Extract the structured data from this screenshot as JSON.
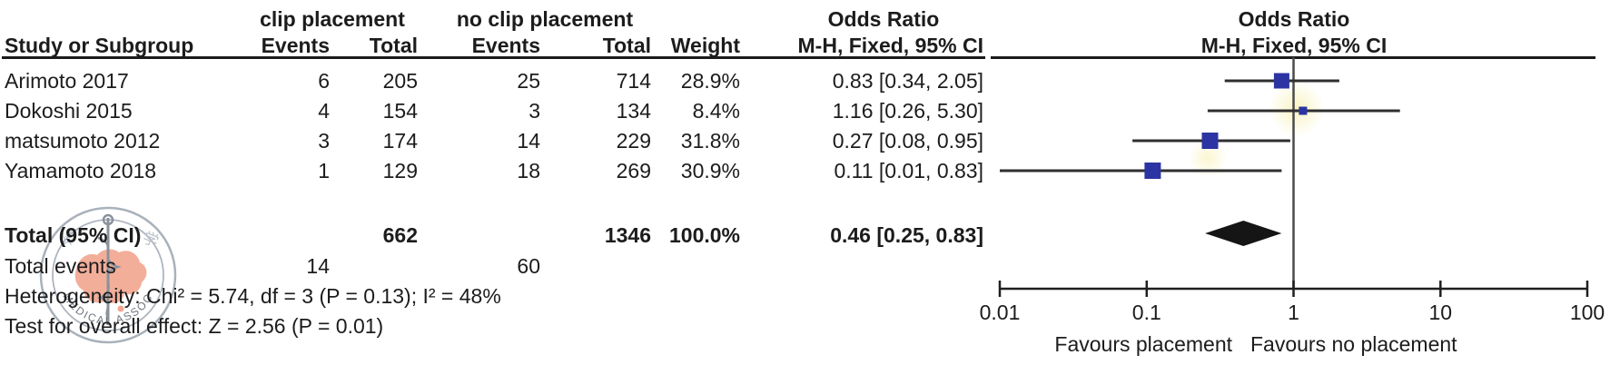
{
  "header": {
    "group1": "clip placement",
    "group2": "no clip placement",
    "or_title_table": "Odds Ratio",
    "or_sub_table": "M-H, Fixed, 95% CI",
    "or_title_plot": "Odds Ratio",
    "or_sub_plot": "M-H, Fixed, 95% CI",
    "study": "Study or Subgroup",
    "events1": "Events",
    "total1": "Total",
    "events2": "Events",
    "total2": "Total",
    "weight": "Weight"
  },
  "rows": [
    {
      "study": "Arimoto 2017",
      "e1": "6",
      "t1": "205",
      "e2": "25",
      "t2": "714",
      "weight": "28.9%",
      "ci": "0.83 [0.34, 2.05]"
    },
    {
      "study": "Dokoshi 2015",
      "e1": "4",
      "t1": "154",
      "e2": "3",
      "t2": "134",
      "weight": "8.4%",
      "ci": "1.16 [0.26, 5.30]"
    },
    {
      "study": "matsumoto 2012",
      "e1": "3",
      "t1": "174",
      "e2": "14",
      "t2": "229",
      "weight": "31.8%",
      "ci": "0.27 [0.08, 0.95]"
    },
    {
      "study": "Yamamoto 2018",
      "e1": "1",
      "t1": "129",
      "e2": "18",
      "t2": "269",
      "weight": "30.9%",
      "ci": "0.11 [0.01, 0.83]"
    }
  ],
  "totals": {
    "label": "Total (95% CI)",
    "t1": "662",
    "t2": "1346",
    "weight": "100.0%",
    "ci": "0.46 [0.25, 0.83]",
    "events_label": "Total events",
    "e1": "14",
    "e2": "60"
  },
  "stats": {
    "heterogeneity": "Heterogeneity: Chi² = 5.74, df = 3 (P = 0.13); I² = 48%",
    "overall": "Test for overall effect: Z = 2.56 (P = 0.01)"
  },
  "chart_data": {
    "type": "forest",
    "x_scale": "log10",
    "xlim": [
      0.01,
      100
    ],
    "axis_ticks": [
      0.01,
      0.1,
      1,
      10,
      100
    ],
    "null_line": 1,
    "studies": [
      {
        "name": "Arimoto 2017",
        "or": 0.83,
        "ci_low": 0.34,
        "ci_high": 2.05,
        "weight_pct": 28.9
      },
      {
        "name": "Dokoshi 2015",
        "or": 1.16,
        "ci_low": 0.26,
        "ci_high": 5.3,
        "weight_pct": 8.4
      },
      {
        "name": "matsumoto 2012",
        "or": 0.27,
        "ci_low": 0.08,
        "ci_high": 0.95,
        "weight_pct": 31.8
      },
      {
        "name": "Yamamoto 2018",
        "or": 0.11,
        "ci_low": 0.01,
        "ci_high": 0.83,
        "weight_pct": 30.9
      }
    ],
    "summary": {
      "or": 0.46,
      "ci_low": 0.25,
      "ci_high": 0.83
    },
    "favours_left": "Favours placement",
    "favours_right": "Favours no placement",
    "marker_color": "#2b34a2",
    "diamond_color": "#151515",
    "line_color": "#2f2f2f",
    "axis_color": "#1f1f1f",
    "null_line_color": "#4a4a4a"
  },
  "watermark": {
    "arc_text": "MEDICAL ASSOC",
    "char_left": "华",
    "char_right": "学",
    "map_color": "#f2a58f"
  }
}
